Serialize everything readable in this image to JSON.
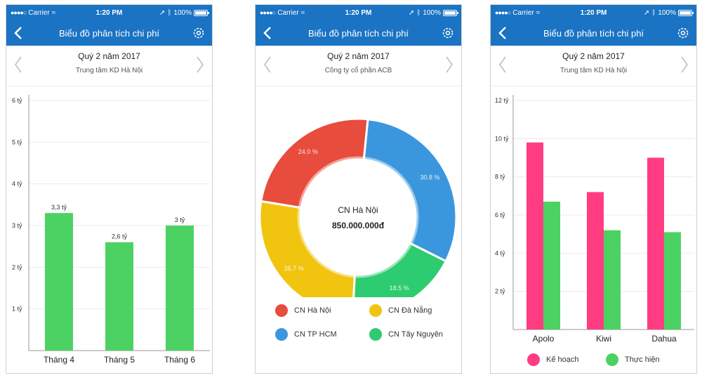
{
  "status_bar": {
    "carrier": "Carrier",
    "time": "1:20 PM",
    "battery": "100%"
  },
  "nav": {
    "title": "Biểu đồ phân tích chi phí"
  },
  "screens": [
    {
      "period": "Quý 2 năm 2017",
      "unit": "Trung tâm KD Hà Nội",
      "chart_data": {
        "type": "bar",
        "categories": [
          "Tháng 4",
          "Tháng 5",
          "Tháng 6"
        ],
        "values": [
          3.3,
          2.6,
          3
        ],
        "data_labels": [
          "3,3 tỷ",
          "2,6 tỷ",
          "3 tỷ"
        ],
        "yticks": [
          1,
          2,
          3,
          4,
          5,
          6
        ],
        "ytick_labels": [
          "1 tỷ",
          "2 tỷ",
          "3 tỷ",
          "4 tỷ",
          "5 tỷ",
          "6 tỷ"
        ],
        "ylim": [
          0,
          6
        ],
        "color": "#4cd263",
        "grid": true
      }
    },
    {
      "period": "Quý 2 năm 2017",
      "unit": "Công ty cổ phần ACB",
      "center_label": "CN Hà Nội",
      "center_value": "850.000.000đ",
      "chart_data": {
        "type": "pie",
        "slices": [
          {
            "label": "CN TP HCM",
            "value": 30.8,
            "percent_label": "30.8 %",
            "color": "#3b97dd"
          },
          {
            "label": "CN Tây Nguyên",
            "value": 18.5,
            "percent_label": "18.5 %",
            "color": "#2ecc71"
          },
          {
            "label": "CN Đà Nẵng",
            "value": 26.7,
            "percent_label": "26.7 %",
            "color": "#f1c40f"
          },
          {
            "label": "CN Hà Nội",
            "value": 24.0,
            "percent_label": "24.0 %",
            "color": "#e74c3c"
          }
        ],
        "legend": [
          {
            "label": "CN Hà Nội",
            "color": "#e74c3c"
          },
          {
            "label": "CN Đà Nẵng",
            "color": "#f1c40f"
          },
          {
            "label": "CN TP HCM",
            "color": "#3b97dd"
          },
          {
            "label": "CN Tây Nguyên",
            "color": "#2ecc71"
          }
        ],
        "legend_placement": "bottom"
      }
    },
    {
      "period": "Quý 2 năm 2017",
      "unit": "Trung tâm KD Hà Nội",
      "chart_data": {
        "type": "bar",
        "categories": [
          "Apolo",
          "Kiwi",
          "Dahua"
        ],
        "series": [
          {
            "name": "Kế hoạch",
            "values": [
              9.8,
              7.2,
              9.0
            ],
            "color": "#ff3c82"
          },
          {
            "name": "Thực hiện",
            "values": [
              6.7,
              5.2,
              5.1
            ],
            "color": "#4cd263"
          }
        ],
        "yticks": [
          2,
          4,
          6,
          8,
          10,
          12
        ],
        "ytick_labels": [
          "2 tỷ",
          "4 tỷ",
          "6 tỷ",
          "8 tỷ",
          "10 tỷ",
          "12 tỷ"
        ],
        "ylim": [
          0,
          12
        ],
        "grid": true,
        "legend_placement": "bottom"
      }
    }
  ]
}
